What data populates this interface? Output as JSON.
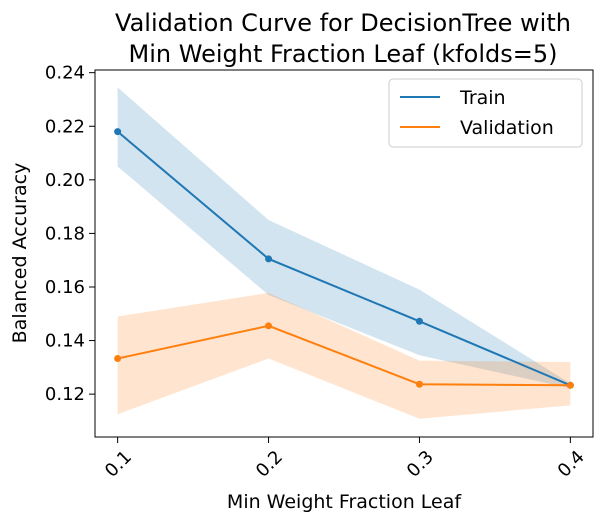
{
  "chart_data": {
    "type": "line",
    "title_lines": [
      "Validation Curve for DecisionTree with",
      "Min Weight Fraction Leaf (kfolds=5)"
    ],
    "xlabel": "Min Weight Fraction Leaf",
    "ylabel": "Balanced Accuracy",
    "x": [
      0.1,
      0.2,
      0.3,
      0.4
    ],
    "x_tick_labels": [
      "0.1",
      "0.2",
      "0.3",
      "0.4"
    ],
    "xlim": [
      0.085,
      0.415
    ],
    "ylim": [
      0.104,
      0.241
    ],
    "y_ticks": [
      0.12,
      0.14,
      0.16,
      0.18,
      0.2,
      0.22,
      0.24
    ],
    "y_tick_labels": [
      "0.12",
      "0.14",
      "0.16",
      "0.18",
      "0.20",
      "0.22",
      "0.24"
    ],
    "series": [
      {
        "name": "Train",
        "color": "#1f77b4",
        "band_color": "#1f77b4",
        "values": [
          0.218,
          0.1705,
          0.1472,
          0.1233
        ],
        "upper": [
          0.2345,
          0.185,
          0.159,
          0.124
        ],
        "lower": [
          0.205,
          0.157,
          0.1345,
          0.1222
        ]
      },
      {
        "name": "Validation",
        "color": "#ff7f0e",
        "band_color": "#ff7f0e",
        "values": [
          0.1333,
          0.1455,
          0.1237,
          0.1233
        ],
        "upper": [
          0.149,
          0.1578,
          0.1325,
          0.132
        ],
        "lower": [
          0.1125,
          0.1333,
          0.1108,
          0.1158
        ]
      }
    ],
    "grid": false,
    "legend_position": "top-right"
  }
}
